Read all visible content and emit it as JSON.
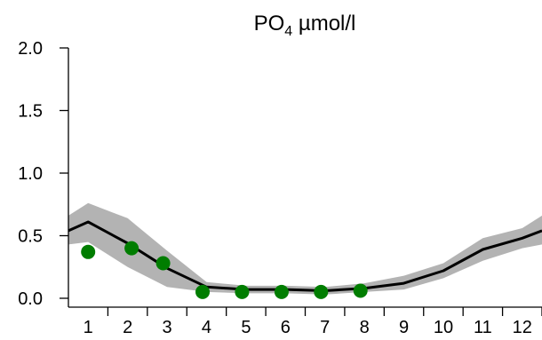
{
  "chart_data": {
    "type": "line",
    "title": "PO",
    "title_subscript": "4",
    "title_unit": " µmol/l",
    "xlabel": "",
    "ylabel": "",
    "xlim": [
      0.5,
      12.5
    ],
    "ylim": [
      0,
      2.0
    ],
    "x_ticks": [
      "1",
      "2",
      "3",
      "4",
      "5",
      "6",
      "7",
      "8",
      "9",
      "10",
      "11",
      "12"
    ],
    "y_ticks": [
      "0.0",
      "0.5",
      "1.0",
      "1.5",
      "2.0"
    ],
    "grid": false,
    "legend": "none",
    "series": [
      {
        "kind": "band",
        "color": "#b3b3b3",
        "x": [
          0.5,
          1.0,
          2.0,
          3.0,
          4.0,
          5.0,
          6.0,
          7.0,
          8.0,
          9.0,
          10.0,
          11.0,
          12.0,
          12.5
        ],
        "lower": [
          0.43,
          0.45,
          0.25,
          0.09,
          0.05,
          0.04,
          0.04,
          0.03,
          0.05,
          0.07,
          0.16,
          0.3,
          0.4,
          0.43
        ],
        "upper": [
          0.66,
          0.76,
          0.64,
          0.38,
          0.13,
          0.1,
          0.1,
          0.09,
          0.12,
          0.18,
          0.28,
          0.48,
          0.56,
          0.66
        ]
      },
      {
        "kind": "line",
        "color": "#000000",
        "x": [
          0.5,
          1.0,
          2.0,
          3.0,
          4.0,
          5.0,
          6.0,
          7.0,
          8.0,
          9.0,
          10.0,
          11.0,
          12.0,
          12.5
        ],
        "values": [
          0.54,
          0.61,
          0.44,
          0.24,
          0.09,
          0.07,
          0.07,
          0.06,
          0.08,
          0.12,
          0.22,
          0.39,
          0.48,
          0.54
        ]
      },
      {
        "kind": "scatter",
        "color": "#007d00",
        "x": [
          1.0,
          2.1,
          2.9,
          3.9,
          4.9,
          5.9,
          6.9,
          7.9
        ],
        "values": [
          0.37,
          0.4,
          0.28,
          0.05,
          0.05,
          0.05,
          0.05,
          0.06
        ]
      }
    ]
  }
}
